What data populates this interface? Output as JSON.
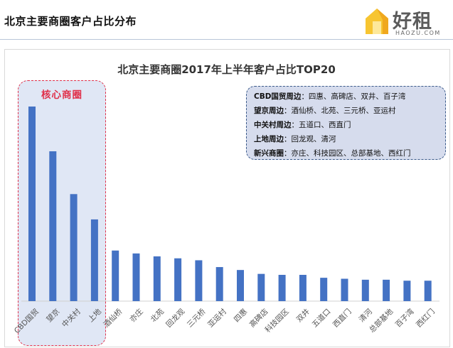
{
  "header": {
    "title": "北京主要商圈客户占比分布",
    "logo_text": "好租",
    "logo_sub": "HAOZU.COM"
  },
  "chart_data": {
    "type": "bar",
    "title": "北京主要商圈2017年上半年客户占比TOP20",
    "categories": [
      "CBD国贸",
      "望京",
      "中关村",
      "上地",
      "酒仙桥",
      "亦庄",
      "北苑",
      "回龙观",
      "三元桥",
      "亚运村",
      "四惠",
      "高碑店",
      "科技园区",
      "双井",
      "五道口",
      "西直门",
      "清河",
      "总部基地",
      "百子湾",
      "西红门"
    ],
    "values": [
      100,
      77,
      55,
      42,
      26,
      24.5,
      23,
      22,
      21,
      17.5,
      16,
      14,
      13.5,
      13.5,
      12,
      11.5,
      11,
      11,
      10.5,
      10.5
    ],
    "ylim": [
      0,
      105
    ],
    "color": "#4472c4",
    "grid": false,
    "highlight": {
      "label": "核心商圈",
      "categories": [
        "CBD国贸",
        "望京",
        "中关村",
        "上地"
      ],
      "border_color": "#e0304a"
    },
    "legend": {
      "placement": "top-right",
      "rows": [
        {
          "name": "CBD国贸周边",
          "members": "：四惠、高碑店、双井、百子湾"
        },
        {
          "name": "望京周边",
          "members": "：酒仙桥、北苑、三元桥、亚运村"
        },
        {
          "name": "中关村周边",
          "members": "：五道口、西直门"
        },
        {
          "name": "上地周边",
          "members": "：回龙观、清河"
        },
        {
          "name": "新兴商圈",
          "members": "：亦庄、科技园区、总部基地、西红门"
        }
      ]
    }
  }
}
